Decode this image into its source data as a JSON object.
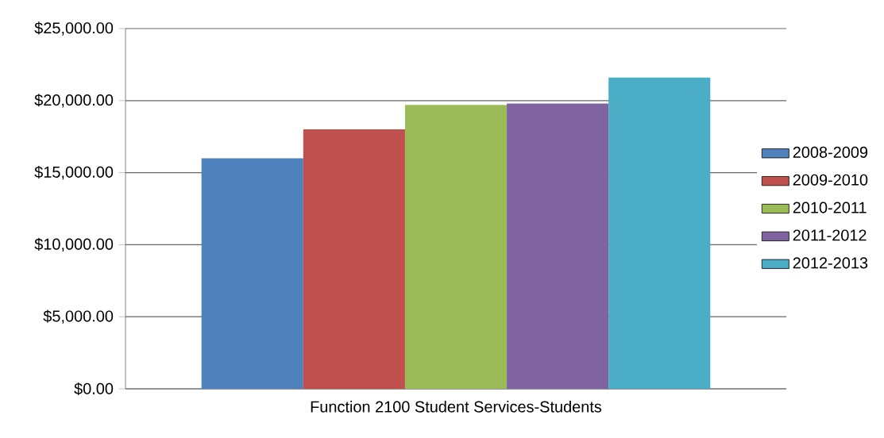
{
  "chart_data": {
    "type": "bar",
    "categories": [
      "Function 2100 Student Services-Students"
    ],
    "series": [
      {
        "name": "2008-2009",
        "color": "#4f81bd",
        "values": [
          16000
        ]
      },
      {
        "name": "2009-2010",
        "color": "#c0504d",
        "values": [
          18000
        ]
      },
      {
        "name": "2010-2011",
        "color": "#9bbb59",
        "values": [
          19700
        ]
      },
      {
        "name": "2011-2012",
        "color": "#8064a2",
        "values": [
          19800
        ]
      },
      {
        "name": "2012-2013",
        "color": "#4bacc6",
        "values": [
          21600
        ]
      }
    ],
    "ylim": [
      0,
      25000
    ],
    "yticks": [
      {
        "value": 0,
        "label": "$0.00"
      },
      {
        "value": 5000,
        "label": "$5,000.00"
      },
      {
        "value": 10000,
        "label": "$10,000.00"
      },
      {
        "value": 15000,
        "label": "$15,000.00"
      },
      {
        "value": 20000,
        "label": "$20,000.00"
      },
      {
        "value": 25000,
        "label": "$25,000.00"
      }
    ],
    "grid": "y",
    "legend": "right"
  }
}
